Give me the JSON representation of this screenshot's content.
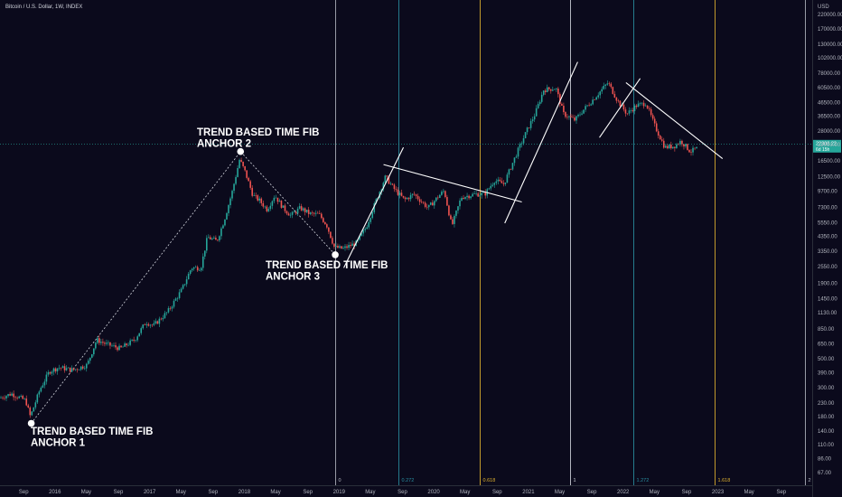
{
  "header": {
    "title": "Bitcoin / U.S. Dollar, 1W, INDEX",
    "currency": "USD"
  },
  "chart_data": {
    "type": "candlestick",
    "title": "Bitcoin / U.S. Dollar, 1W, INDEX",
    "y_scale": "log",
    "ylim": [
      55,
      280000
    ],
    "y_ticks": [
      220000,
      170000,
      130000,
      102000,
      78000,
      60500,
      46500,
      36500,
      28000,
      22000,
      16500,
      12500,
      9700,
      7300,
      5550,
      4350,
      3350,
      2550,
      1900,
      1450,
      1130,
      850,
      650,
      500,
      390,
      300,
      230,
      180,
      140,
      110,
      86,
      67
    ],
    "y_tick_labels": [
      "220000.00",
      "170000.00",
      "130000.00",
      "102000.00",
      "78000.00",
      "60500.00",
      "46500.00",
      "36500.00",
      "28000.00",
      "22000.00",
      "16500.00",
      "12500.00",
      "9700.00",
      "7300.00",
      "5550.00",
      "4350.00",
      "3350.00",
      "2550.00",
      "1900.00",
      "1450.00",
      "1130.00",
      "850.00",
      "650.00",
      "500.00",
      "390.00",
      "300.00",
      "230.00",
      "180.00",
      "140.00",
      "110.00",
      "86.00",
      "67.00"
    ],
    "x_ticks": [
      {
        "t": 2015.67,
        "label": "Sep"
      },
      {
        "t": 2016.0,
        "label": "2016"
      },
      {
        "t": 2016.33,
        "label": "May"
      },
      {
        "t": 2016.67,
        "label": "Sep"
      },
      {
        "t": 2017.0,
        "label": "2017"
      },
      {
        "t": 2017.33,
        "label": "May"
      },
      {
        "t": 2017.67,
        "label": "Sep"
      },
      {
        "t": 2018.0,
        "label": "2018"
      },
      {
        "t": 2018.33,
        "label": "May"
      },
      {
        "t": 2018.67,
        "label": "Sep"
      },
      {
        "t": 2019.0,
        "label": "2019"
      },
      {
        "t": 2019.33,
        "label": "May"
      },
      {
        "t": 2019.67,
        "label": "Sep"
      },
      {
        "t": 2020.0,
        "label": "2020"
      },
      {
        "t": 2020.33,
        "label": "May"
      },
      {
        "t": 2020.67,
        "label": "Sep"
      },
      {
        "t": 2021.0,
        "label": "2021"
      },
      {
        "t": 2021.33,
        "label": "May"
      },
      {
        "t": 2021.67,
        "label": "Sep"
      },
      {
        "t": 2022.0,
        "label": "2022"
      },
      {
        "t": 2022.33,
        "label": "May"
      },
      {
        "t": 2022.67,
        "label": "Sep"
      },
      {
        "t": 2023.0,
        "label": "2023"
      },
      {
        "t": 2023.33,
        "label": "May"
      },
      {
        "t": 2023.67,
        "label": "Sep"
      }
    ],
    "price_path": [
      [
        2015.42,
        250
      ],
      [
        2015.55,
        270
      ],
      [
        2015.7,
        240
      ],
      [
        2015.75,
        180
      ],
      [
        2015.85,
        290
      ],
      [
        2015.95,
        400
      ],
      [
        2016.05,
        430
      ],
      [
        2016.2,
        410
      ],
      [
        2016.35,
        450
      ],
      [
        2016.45,
        700
      ],
      [
        2016.55,
        650
      ],
      [
        2016.7,
        600
      ],
      [
        2016.85,
        700
      ],
      [
        2016.97,
        960
      ],
      [
        2017.05,
        900
      ],
      [
        2017.2,
        1150
      ],
      [
        2017.35,
        1700
      ],
      [
        2017.45,
        2500
      ],
      [
        2017.55,
        2500
      ],
      [
        2017.62,
        4300
      ],
      [
        2017.72,
        4000
      ],
      [
        2017.8,
        5900
      ],
      [
        2017.88,
        9500
      ],
      [
        2017.96,
        17000
      ],
      [
        2018.02,
        13500
      ],
      [
        2018.1,
        9000
      ],
      [
        2018.17,
        8200
      ],
      [
        2018.25,
        7000
      ],
      [
        2018.33,
        9000
      ],
      [
        2018.42,
        7200
      ],
      [
        2018.5,
        6300
      ],
      [
        2018.6,
        7200
      ],
      [
        2018.7,
        6500
      ],
      [
        2018.8,
        6400
      ],
      [
        2018.88,
        5300
      ],
      [
        2018.96,
        3600
      ],
      [
        2019.05,
        3500
      ],
      [
        2019.2,
        3900
      ],
      [
        2019.3,
        5200
      ],
      [
        2019.4,
        8200
      ],
      [
        2019.5,
        12500
      ],
      [
        2019.58,
        10300
      ],
      [
        2019.7,
        8300
      ],
      [
        2019.8,
        9200
      ],
      [
        2019.95,
        7200
      ],
      [
        2020.05,
        8700
      ],
      [
        2020.12,
        9800
      ],
      [
        2020.2,
        5200
      ],
      [
        2020.3,
        8700
      ],
      [
        2020.45,
        9200
      ],
      [
        2020.55,
        9200
      ],
      [
        2020.65,
        11700
      ],
      [
        2020.75,
        11000
      ],
      [
        2020.88,
        18500
      ],
      [
        2021.0,
        29000
      ],
      [
        2021.08,
        38000
      ],
      [
        2021.17,
        58000
      ],
      [
        2021.3,
        60000
      ],
      [
        2021.38,
        38000
      ],
      [
        2021.5,
        34000
      ],
      [
        2021.58,
        40000
      ],
      [
        2021.67,
        47000
      ],
      [
        2021.8,
        60000
      ],
      [
        2021.85,
        66000
      ],
      [
        2021.95,
        48000
      ],
      [
        2022.05,
        38000
      ],
      [
        2022.15,
        44000
      ],
      [
        2022.25,
        46000
      ],
      [
        2022.35,
        30000
      ],
      [
        2022.45,
        21000
      ],
      [
        2022.55,
        21500
      ],
      [
        2022.62,
        23500
      ],
      [
        2022.72,
        19500
      ],
      [
        2022.78,
        20500
      ]
    ],
    "last_price": {
      "value": 22308.22,
      "label": "22308.22",
      "countdown": "6d 15h"
    },
    "fib_time_lines": [
      {
        "label": "0",
        "t": 2018.96,
        "color": "#b2b5be"
      },
      {
        "label": "0.272",
        "t": 2019.63,
        "color": "#2a8fa0"
      },
      {
        "label": "0.618",
        "t": 2020.49,
        "color": "#e0b32f"
      },
      {
        "label": "1",
        "t": 2021.44,
        "color": "#d1d4dc"
      },
      {
        "label": "1.272",
        "t": 2022.11,
        "color": "#2a8fa0"
      },
      {
        "label": "1.618",
        "t": 2022.97,
        "color": "#e0b32f"
      },
      {
        "label": "2",
        "t": 2023.92,
        "color": "#b2b5be"
      }
    ],
    "anchors": [
      {
        "name": "anchor-1",
        "t": 2015.75,
        "price": 160,
        "label": [
          "TREND BASED TIME FIB",
          "ANCHOR 1"
        ]
      },
      {
        "name": "anchor-2",
        "t": 2017.96,
        "price": 19500,
        "label": [
          "TREND BASED TIME FIB",
          "ANCHOR 2"
        ]
      },
      {
        "name": "anchor-3",
        "t": 2018.96,
        "price": 3150,
        "label": [
          "TREND BASED TIME FIB",
          "ANCHOR 3"
        ]
      }
    ],
    "trend_lines": [
      [
        [
          2019.05,
          2500
        ],
        [
          2019.68,
          21000
        ]
      ],
      [
        [
          2019.47,
          15500
        ],
        [
          2020.93,
          8000
        ]
      ],
      [
        [
          2020.75,
          5500
        ],
        [
          2021.52,
          95000
        ]
      ],
      [
        [
          2021.75,
          25000
        ],
        [
          2022.18,
          71000
        ]
      ],
      [
        [
          2022.03,
          66000
        ],
        [
          2023.05,
          17200
        ]
      ]
    ],
    "candle_colors": {
      "up": "#26a69a",
      "down": "#ef5350"
    }
  }
}
